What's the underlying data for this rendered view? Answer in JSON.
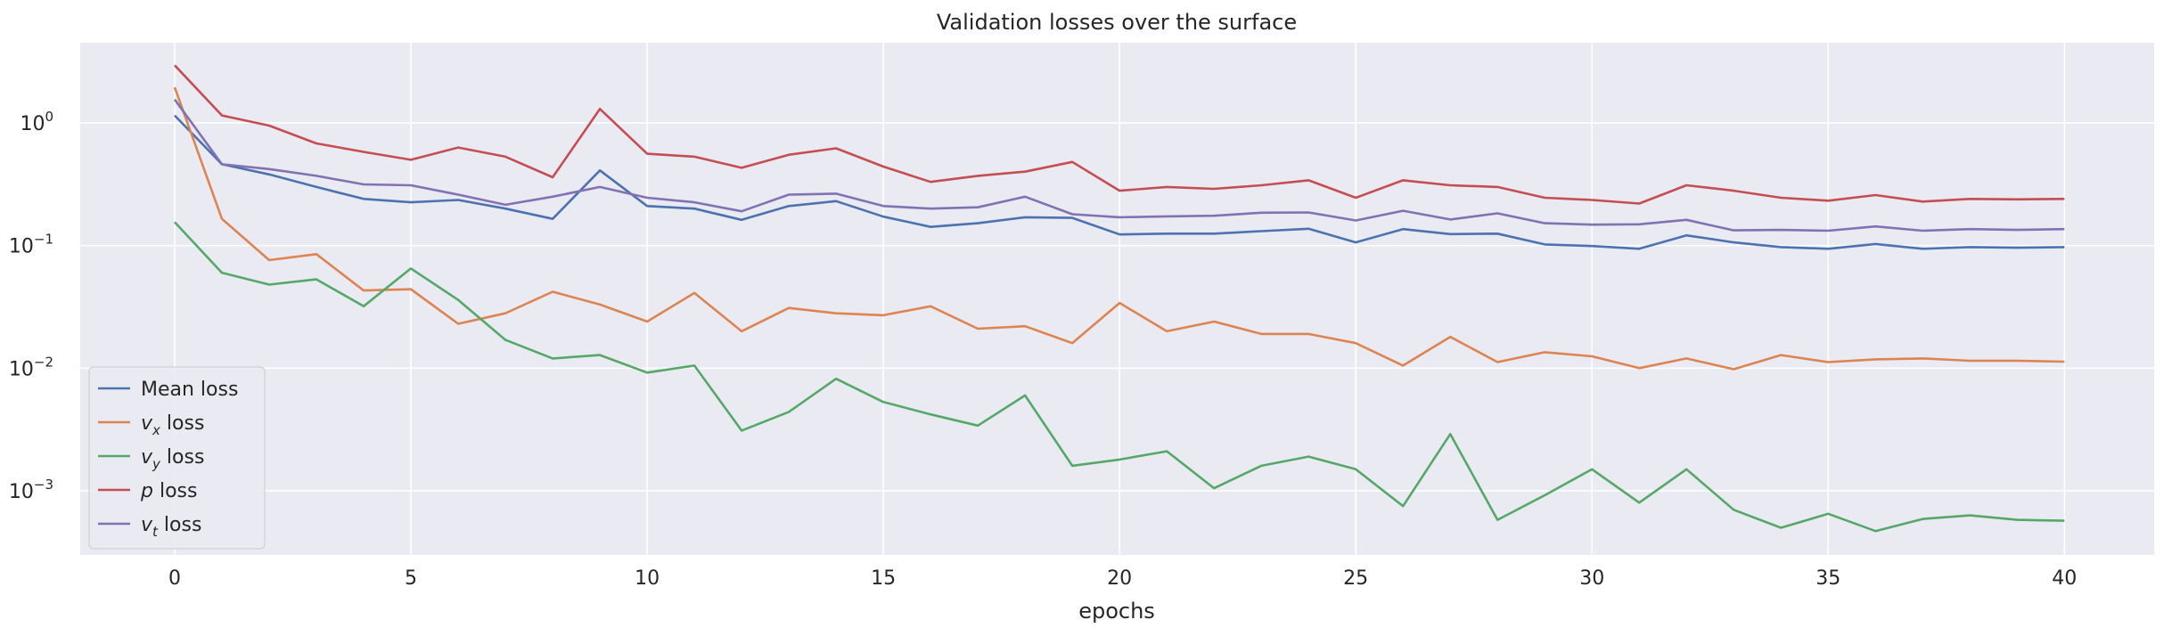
{
  "chart_data": {
    "type": "line",
    "title": "Validation losses over the surface",
    "xlabel": "epochs",
    "ylabel": "",
    "yscale": "log",
    "xlim": [
      -2,
      41.9
    ],
    "ylim": [
      0.0003,
      4.5
    ],
    "x_ticks": [
      0,
      5,
      10,
      15,
      20,
      25,
      30,
      35,
      40
    ],
    "y_ticks": [
      {
        "value": 0.001,
        "base": "10",
        "exp": "−3"
      },
      {
        "value": 0.01,
        "base": "10",
        "exp": "−2"
      },
      {
        "value": 0.1,
        "base": "10",
        "exp": "−1"
      },
      {
        "value": 1,
        "base": "10",
        "exp": "0"
      }
    ],
    "grid": true,
    "legend_position": "lower-left",
    "background_color": "#eaeaf2",
    "grid_color": "#ffffff",
    "x": [
      0,
      1,
      2,
      3,
      4,
      5,
      6,
      7,
      8,
      9,
      10,
      11,
      12,
      13,
      14,
      15,
      16,
      17,
      18,
      19,
      20,
      21,
      22,
      23,
      24,
      25,
      26,
      27,
      28,
      29,
      30,
      31,
      32,
      33,
      34,
      35,
      36,
      37,
      38,
      39,
      40
    ],
    "series": [
      {
        "name": "Mean loss",
        "label_main": "Mean loss",
        "label_sub": "",
        "label_rest": "",
        "color": "#4c72b0",
        "values": [
          1.15,
          0.46,
          0.38,
          0.3,
          0.24,
          0.225,
          0.235,
          0.2,
          0.165,
          0.41,
          0.21,
          0.2,
          0.162,
          0.21,
          0.23,
          0.172,
          0.142,
          0.152,
          0.17,
          0.168,
          0.123,
          0.125,
          0.125,
          0.131,
          0.137,
          0.106,
          0.136,
          0.124,
          0.125,
          0.102,
          0.099,
          0.094,
          0.121,
          0.106,
          0.097,
          0.094,
          0.103,
          0.094,
          0.097,
          0.096,
          0.097
        ]
      },
      {
        "name": "vx loss",
        "label_main": "v",
        "label_sub": "x",
        "label_rest": " loss",
        "color": "#dd8452",
        "values": [
          1.95,
          0.165,
          0.076,
          0.085,
          0.043,
          0.044,
          0.023,
          0.028,
          0.042,
          0.033,
          0.024,
          0.041,
          0.02,
          0.031,
          0.028,
          0.027,
          0.032,
          0.021,
          0.022,
          0.016,
          0.034,
          0.02,
          0.024,
          0.019,
          0.019,
          0.016,
          0.0105,
          0.018,
          0.0112,
          0.0135,
          0.0125,
          0.01,
          0.012,
          0.0098,
          0.0128,
          0.0112,
          0.0118,
          0.012,
          0.0115,
          0.0115,
          0.0113
        ]
      },
      {
        "name": "vy loss",
        "label_main": "v",
        "label_sub": "y",
        "label_rest": " loss",
        "color": "#55a868",
        "values": [
          0.155,
          0.06,
          0.048,
          0.053,
          0.032,
          0.065,
          0.036,
          0.017,
          0.012,
          0.0128,
          0.0092,
          0.0105,
          0.0031,
          0.0044,
          0.0082,
          0.0053,
          0.0042,
          0.0034,
          0.006,
          0.0016,
          0.0018,
          0.0021,
          0.00105,
          0.0016,
          0.0019,
          0.0015,
          0.00075,
          0.0029,
          0.00058,
          0.00092,
          0.0015,
          0.0008,
          0.0015,
          0.0007,
          0.0005,
          0.00065,
          0.00047,
          0.00059,
          0.00063,
          0.00058,
          0.00057
        ]
      },
      {
        "name": "p loss",
        "label_main": "p",
        "label_sub": "",
        "label_rest": " loss",
        "color": "#c44e52",
        "values": [
          2.95,
          1.15,
          0.95,
          0.68,
          0.58,
          0.5,
          0.63,
          0.53,
          0.36,
          1.3,
          0.56,
          0.53,
          0.43,
          0.55,
          0.62,
          0.44,
          0.33,
          0.37,
          0.4,
          0.48,
          0.28,
          0.3,
          0.29,
          0.31,
          0.34,
          0.245,
          0.34,
          0.31,
          0.3,
          0.245,
          0.235,
          0.22,
          0.31,
          0.28,
          0.245,
          0.232,
          0.258,
          0.228,
          0.24,
          0.238,
          0.24
        ]
      },
      {
        "name": "vt loss",
        "label_main": "v",
        "label_sub": "t",
        "label_rest": " loss",
        "color": "#8172b3",
        "values": [
          1.55,
          0.46,
          0.42,
          0.37,
          0.315,
          0.31,
          0.26,
          0.215,
          0.25,
          0.3,
          0.245,
          0.225,
          0.19,
          0.26,
          0.265,
          0.21,
          0.2,
          0.205,
          0.25,
          0.18,
          0.17,
          0.173,
          0.175,
          0.185,
          0.186,
          0.16,
          0.192,
          0.163,
          0.183,
          0.152,
          0.148,
          0.149,
          0.162,
          0.133,
          0.134,
          0.132,
          0.143,
          0.132,
          0.136,
          0.134,
          0.136
        ]
      }
    ]
  }
}
